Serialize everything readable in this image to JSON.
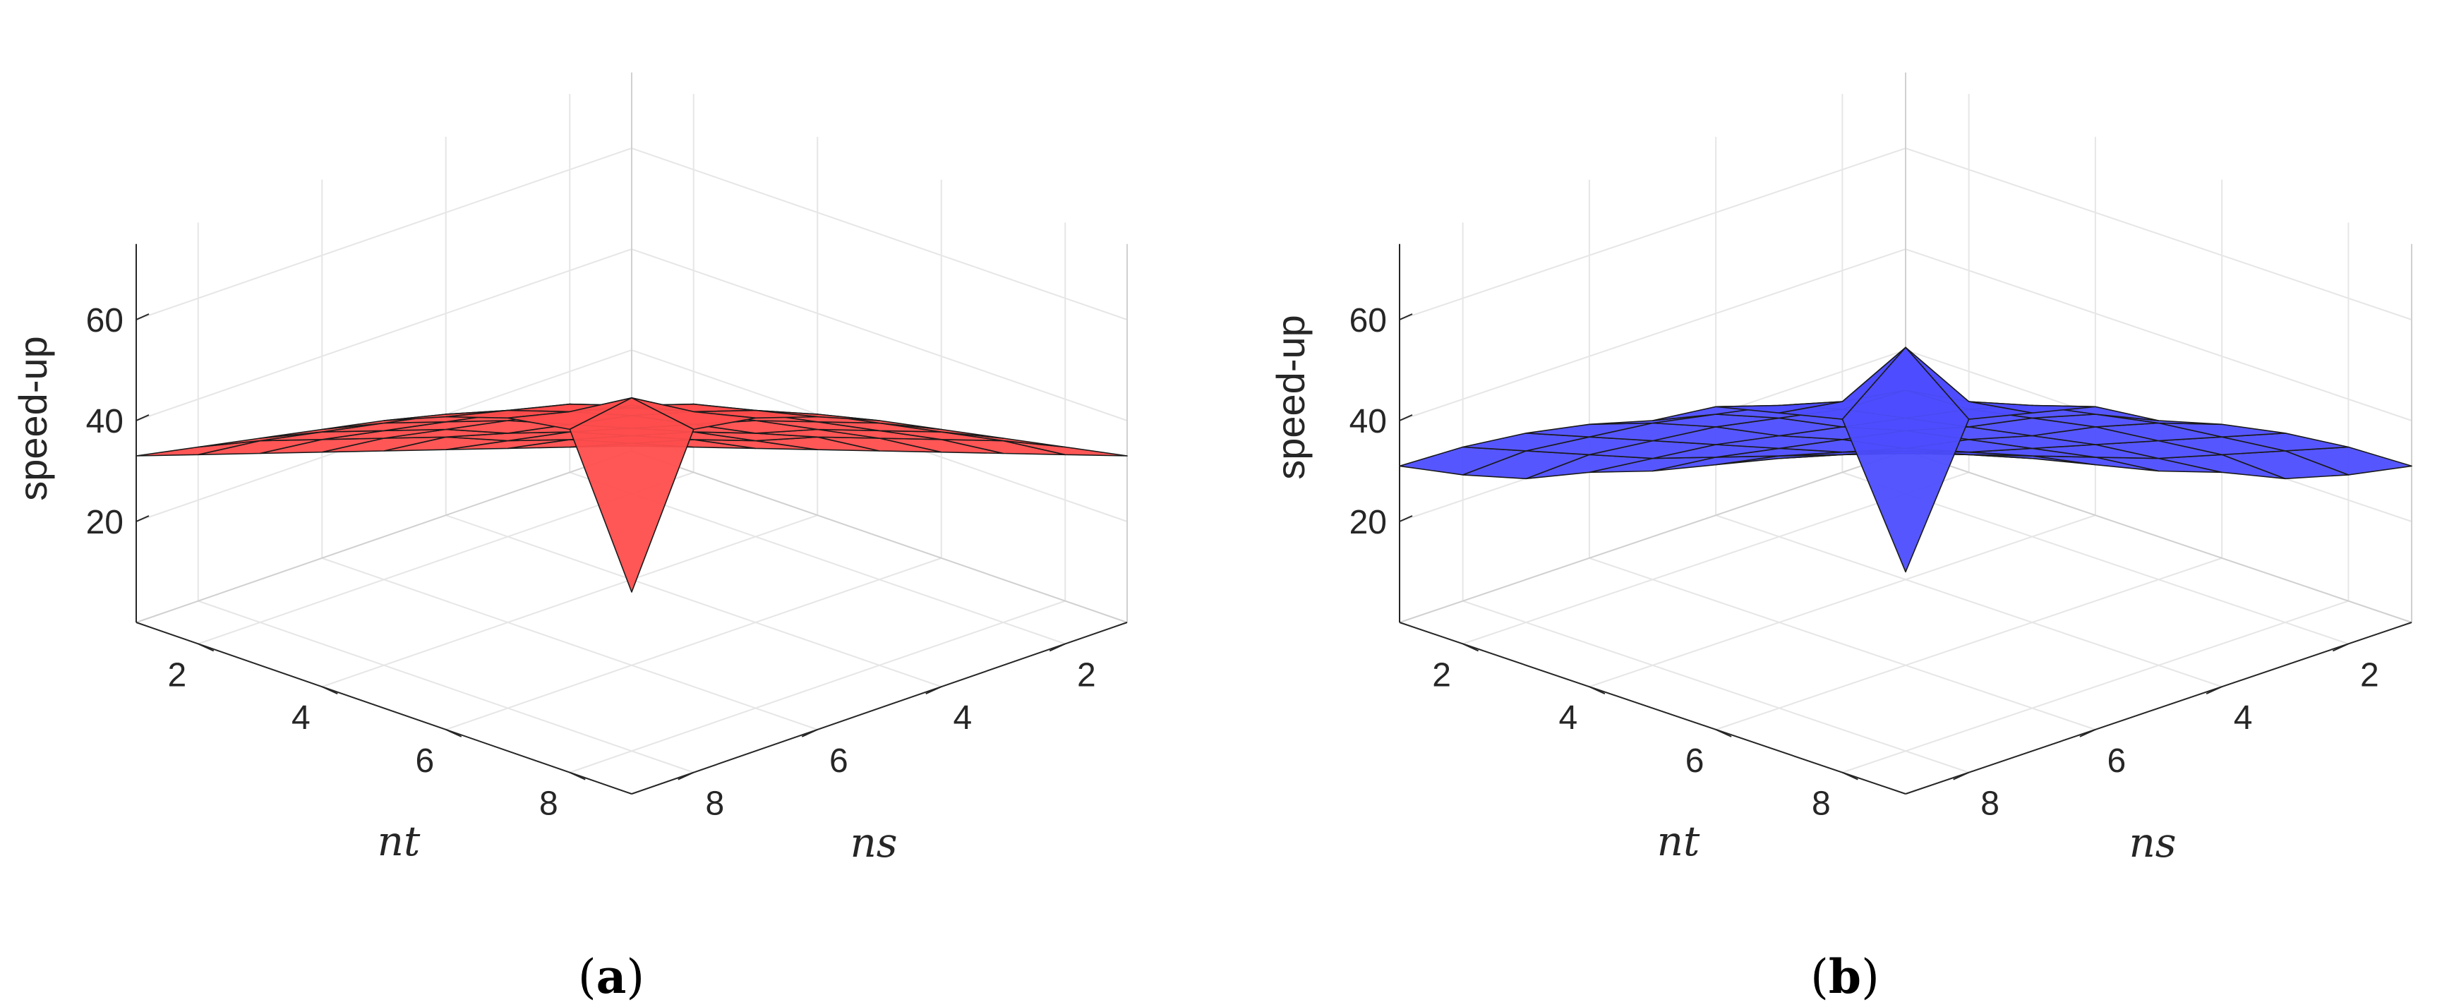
{
  "figure": {
    "panels": [
      {
        "caption_open": "(",
        "caption_letter": "a",
        "caption_close": ")"
      },
      {
        "caption_open": "(",
        "caption_letter": "b",
        "caption_close": ")"
      }
    ]
  },
  "chart_data": [
    {
      "type": "surface",
      "face_color": "#FF4D4D",
      "zlabel": "speed-up",
      "xlabel": "nt",
      "ylabel": "ns",
      "xticks": [
        2,
        4,
        6,
        8
      ],
      "yticks": [
        2,
        4,
        6,
        8
      ],
      "zticks": [
        20,
        40,
        60
      ],
      "xlim": [
        1,
        9
      ],
      "ylim": [
        1,
        9
      ],
      "zlim": [
        0,
        75
      ],
      "grid": true,
      "nt": [
        1,
        2,
        3,
        4,
        5,
        6,
        7,
        8,
        9
      ],
      "ns": [
        1,
        2,
        3,
        4,
        5,
        6,
        7,
        8,
        9
      ],
      "z_rows_by_nt": [
        [
          1,
          5,
          9,
          13,
          17,
          21,
          25,
          29,
          33
        ],
        [
          5,
          10,
          15,
          19,
          24,
          28,
          32,
          36,
          39
        ],
        [
          9,
          15,
          20,
          25,
          29,
          34,
          38,
          42,
          45
        ],
        [
          13,
          19,
          25,
          30,
          35,
          40,
          44,
          48,
          51
        ],
        [
          17,
          24,
          29,
          35,
          41,
          46,
          50,
          54,
          57
        ],
        [
          21,
          28,
          34,
          40,
          46,
          51,
          56,
          59,
          62
        ],
        [
          25,
          32,
          38,
          44,
          50,
          56,
          60,
          63,
          66
        ],
        [
          29,
          36,
          42,
          48,
          54,
          59,
          63,
          70,
          68
        ],
        [
          33,
          39,
          45,
          51,
          57,
          62,
          66,
          68,
          40
        ]
      ]
    },
    {
      "type": "surface",
      "face_color": "#4D4DFF",
      "zlabel": "speed-up",
      "xlabel": "nt",
      "ylabel": "ns",
      "xticks": [
        2,
        4,
        6,
        8
      ],
      "yticks": [
        2,
        4,
        6,
        8
      ],
      "zticks": [
        20,
        40,
        60
      ],
      "xlim": [
        1,
        9
      ],
      "ylim": [
        1,
        9
      ],
      "zlim": [
        0,
        75
      ],
      "grid": true,
      "nt": [
        1,
        2,
        3,
        4,
        5,
        6,
        7,
        8,
        9
      ],
      "ns": [
        1,
        2,
        3,
        4,
        5,
        6,
        7,
        8,
        9
      ],
      "z_rows_by_nt": [
        [
          1,
          4,
          7,
          10,
          13,
          17,
          20,
          25,
          31
        ],
        [
          4,
          8,
          12,
          16,
          20,
          24,
          29,
          34,
          39
        ],
        [
          7,
          12,
          17,
          21,
          26,
          31,
          36,
          41,
          46
        ],
        [
          10,
          16,
          21,
          26,
          32,
          37,
          43,
          48,
          52
        ],
        [
          13,
          20,
          26,
          32,
          38,
          43,
          49,
          54,
          57
        ],
        [
          17,
          24,
          31,
          37,
          43,
          49,
          55,
          60,
          64
        ],
        [
          20,
          29,
          36,
          43,
          49,
          55,
          63,
          65,
          67
        ],
        [
          25,
          34,
          41,
          48,
          54,
          60,
          65,
          80,
          70
        ],
        [
          31,
          39,
          46,
          52,
          57,
          64,
          67,
          70,
          44
        ]
      ]
    }
  ]
}
